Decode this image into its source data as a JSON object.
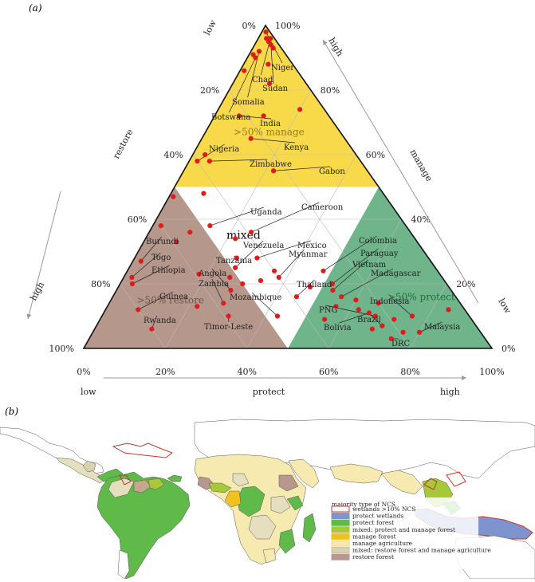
{
  "panel_a_label": "(a)",
  "panel_b_label": "(b)",
  "chart_data": {
    "type": "scatter",
    "subtype": "ternary",
    "axes": {
      "bottom": {
        "name": "protect",
        "low": "low",
        "high": "high",
        "ticks": [
          "0%",
          "20%",
          "40%",
          "60%",
          "80%",
          "100%"
        ]
      },
      "left": {
        "name": "restore",
        "low": "low",
        "high": "high",
        "ticks": [
          "100%",
          "80%",
          "60%",
          "40%",
          "20%",
          "0%"
        ]
      },
      "right": {
        "name": "manage",
        "low": "low",
        "high": "high",
        "ticks": [
          "0%",
          "20%",
          "40%",
          "60%",
          "80%",
          "100%"
        ]
      }
    },
    "zones": [
      {
        "label": ">50% manage",
        "color": "#f8d94a"
      },
      {
        "label": ">50% restore",
        "color": "#b5978b"
      },
      {
        "label": ">50% protect",
        "color": "#6fb48a"
      },
      {
        "label": "mixed",
        "color": "#ffffff"
      }
    ],
    "point_color": "#e01b1b",
    "countries": [
      {
        "name": "Niger",
        "protect": 1,
        "manage": 98,
        "restore": 1
      },
      {
        "name": "Chad",
        "protect": 3,
        "manage": 96,
        "restore": 1
      },
      {
        "name": "Sudan",
        "protect": 4,
        "manage": 94,
        "restore": 2
      },
      {
        "name": "Somalia",
        "protect": 2,
        "manage": 92,
        "restore": 6
      },
      {
        "name": "Botswana",
        "protect": 2,
        "manage": 90,
        "restore": 8
      },
      {
        "name": "India",
        "protect": 6,
        "manage": 72,
        "restore": 22
      },
      {
        "name": "Kenya",
        "protect": 12,
        "manage": 65,
        "restore": 23
      },
      {
        "name": "Nigeria",
        "protect": 2,
        "manage": 58,
        "restore": 40
      },
      {
        "name": "Zimbabwe",
        "protect": 5,
        "manage": 58,
        "restore": 37
      },
      {
        "name": "Gabon",
        "protect": 22,
        "manage": 55,
        "restore": 23
      },
      {
        "name": "Cameroon",
        "protect": 25,
        "manage": 36,
        "restore": 39
      },
      {
        "name": "Uganda",
        "protect": 14,
        "manage": 38,
        "restore": 48
      },
      {
        "name": "Mexico",
        "protect": 30,
        "manage": 28,
        "restore": 42
      },
      {
        "name": "Venezuela",
        "protect": 26,
        "manage": 25,
        "restore": 49
      },
      {
        "name": "Tanzania",
        "protect": 25,
        "manage": 28,
        "restore": 47
      },
      {
        "name": "Myanmar",
        "protect": 38,
        "manage": 22,
        "restore": 40
      },
      {
        "name": "Colombia",
        "protect": 48,
        "manage": 24,
        "restore": 28
      },
      {
        "name": "Paraguay",
        "protect": 52,
        "manage": 20,
        "restore": 28
      },
      {
        "name": "Vietnam",
        "protect": 53,
        "manage": 18,
        "restore": 29
      },
      {
        "name": "Madagascar",
        "protect": 56,
        "manage": 16,
        "restore": 28
      },
      {
        "name": "Thailand",
        "protect": 45,
        "manage": 16,
        "restore": 39
      },
      {
        "name": "Angola",
        "protect": 28,
        "manage": 18,
        "restore": 54
      },
      {
        "name": "Zambia",
        "protect": 28,
        "manage": 14,
        "restore": 58
      },
      {
        "name": "Mozambique",
        "protect": 43,
        "manage": 10,
        "restore": 47
      },
      {
        "name": "Burundi",
        "protect": 2,
        "manage": 27,
        "restore": 71
      },
      {
        "name": "Togo",
        "protect": 2,
        "manage": 22,
        "restore": 76
      },
      {
        "name": "Ethiopia",
        "protect": 3,
        "manage": 20,
        "restore": 77
      },
      {
        "name": "Guinea",
        "protect": 8,
        "manage": 12,
        "restore": 80
      },
      {
        "name": "Rwanda",
        "protect": 14,
        "manage": 6,
        "restore": 80
      },
      {
        "name": "Timor-Leste",
        "protect": 31,
        "manage": 10,
        "restore": 59
      },
      {
        "name": "Indonesia",
        "protect": 76,
        "manage": 10,
        "restore": 14
      },
      {
        "name": "PNG",
        "protect": 67,
        "manage": 10,
        "restore": 23
      },
      {
        "name": "Brazil",
        "protect": 70,
        "manage": 7,
        "restore": 23
      },
      {
        "name": "Bolivia",
        "protect": 65,
        "manage": 11,
        "restore": 24
      },
      {
        "name": "Malaysia",
        "protect": 80,
        "manage": 5,
        "restore": 15
      },
      {
        "name": "DRC",
        "protect": 74,
        "manage": 3,
        "restore": 23
      }
    ],
    "extra_points": [
      {
        "protect": 2,
        "manage": 96,
        "restore": 2
      },
      {
        "protect": 3,
        "manage": 95,
        "restore": 2
      },
      {
        "protect": 5,
        "manage": 93,
        "restore": 2
      },
      {
        "protect": 1,
        "manage": 91,
        "restore": 8
      },
      {
        "protect": 6,
        "manage": 88,
        "restore": 6
      },
      {
        "protect": 1,
        "manage": 86,
        "restore": 13
      },
      {
        "protect": 9,
        "manage": 82,
        "restore": 9
      },
      {
        "protect": 20,
        "manage": 74,
        "restore": 6
      },
      {
        "protect": 12,
        "manage": 72,
        "restore": 16
      },
      {
        "protect": 3,
        "manage": 60,
        "restore": 37
      },
      {
        "protect": 8,
        "manage": 48,
        "restore": 44
      },
      {
        "protect": 1,
        "manage": 47,
        "restore": 52
      },
      {
        "protect": 22,
        "manage": 34,
        "restore": 44
      },
      {
        "protect": 2,
        "manage": 38,
        "restore": 60
      },
      {
        "protect": 10,
        "manage": 36,
        "restore": 54
      },
      {
        "protect": 8,
        "manage": 33,
        "restore": 59
      },
      {
        "protect": 36,
        "manage": 24,
        "restore": 40
      },
      {
        "protect": 18,
        "manage": 23,
        "restore": 59
      },
      {
        "protect": 26,
        "manage": 22,
        "restore": 52
      },
      {
        "protect": 30,
        "manage": 20,
        "restore": 50
      },
      {
        "protect": 34,
        "manage": 21,
        "restore": 45
      },
      {
        "protect": 47,
        "manage": 19,
        "restore": 34
      },
      {
        "protect": 22,
        "manage": 13,
        "restore": 65
      },
      {
        "protect": 56,
        "manage": 13,
        "restore": 31
      },
      {
        "protect": 62,
        "manage": 12,
        "restore": 26
      },
      {
        "protect": 55,
        "manage": 9,
        "restore": 36
      },
      {
        "protect": 72,
        "manage": 9,
        "restore": 19
      },
      {
        "protect": 68,
        "manage": 6,
        "restore": 26
      },
      {
        "protect": 76,
        "manage": 5,
        "restore": 19
      },
      {
        "protect": 84,
        "manage": 12,
        "restore": 4
      },
      {
        "protect": 66,
        "manage": 14,
        "restore": 20
      },
      {
        "protect": 60,
        "manage": 15,
        "restore": 25
      }
    ]
  },
  "map_legend": {
    "title": "majority type of NCS",
    "items": [
      {
        "label": "wetlands >10% NCS",
        "color": "#ffffff",
        "border": "#c0392b"
      },
      {
        "label": "protect wetlands",
        "color": "#7f93cf",
        "border": "#7f93cf"
      },
      {
        "label": "protect forest",
        "color": "#5fba4a",
        "border": "#5fba4a"
      },
      {
        "label": "mixed: protect and manage forest",
        "color": "#a7c838",
        "border": "#a7c838"
      },
      {
        "label": "manage forest",
        "color": "#f2c21c",
        "border": "#f2c21c"
      },
      {
        "label": "manage agriculture",
        "color": "#f7eab0",
        "border": "#e6d79a"
      },
      {
        "label": "mixed: restore forest and manage agriculture",
        "color": "#d9d2b2",
        "border": "#c9c09c"
      },
      {
        "label": "restore forest",
        "color": "#b8978e",
        "border": "#b8978e"
      }
    ]
  }
}
